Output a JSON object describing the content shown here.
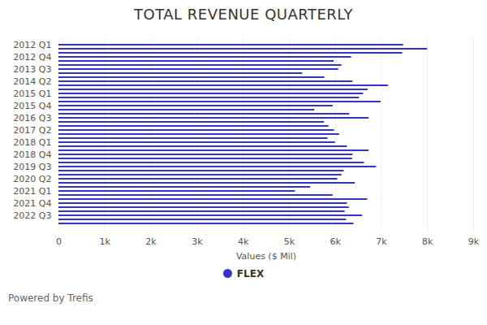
{
  "chart_data": {
    "type": "bar",
    "orientation": "horizontal",
    "title": "TOTAL REVENUE QUARTERLY",
    "xlabel": "Values ($ Mil)",
    "caption": "Powered by Trefis",
    "categories": [
      "2012 Q1",
      null,
      null,
      "2012 Q4",
      null,
      null,
      "2013 Q3",
      null,
      null,
      "2014 Q2",
      null,
      null,
      "2015 Q1",
      null,
      null,
      "2015 Q4",
      null,
      null,
      "2016 Q3",
      null,
      null,
      "2017 Q2",
      null,
      null,
      "2018 Q1",
      null,
      null,
      "2018 Q4",
      null,
      null,
      "2019 Q3",
      null,
      null,
      "2020 Q2",
      null,
      null,
      "2021 Q1",
      null,
      null,
      "2021 Q4",
      null,
      null,
      "2022 Q3",
      null,
      null
    ],
    "series": [
      {
        "name": "FLEX",
        "color": "#3434c4",
        "values": [
          7480,
          8000,
          7460,
          6350,
          5970,
          6140,
          6070,
          5290,
          5770,
          6380,
          7150,
          6710,
          6610,
          6520,
          6990,
          5950,
          5550,
          6310,
          6730,
          5760,
          5860,
          5980,
          6090,
          5840,
          6000,
          6260,
          6730,
          6380,
          6370,
          6630,
          6890,
          6190,
          6140,
          6050,
          6430,
          5460,
          5130,
          5950,
          6700,
          6260,
          6300,
          6210,
          6590,
          6240,
          6400
        ]
      }
    ],
    "xlim": [
      0,
      9000
    ],
    "xticks": [
      0,
      {
        "value": 1000,
        "label": "1k"
      },
      {
        "value": 2000,
        "label": "2k"
      },
      {
        "value": 3000,
        "label": "3k"
      },
      {
        "value": 4000,
        "label": "4k"
      },
      {
        "value": 5000,
        "label": "5k"
      },
      {
        "value": 6000,
        "label": "6k"
      },
      {
        "value": 7000,
        "label": "7k"
      },
      {
        "value": 8000,
        "label": "8k"
      },
      {
        "value": 9000,
        "label": "9k"
      }
    ],
    "grid": true,
    "legend": "bottom"
  }
}
